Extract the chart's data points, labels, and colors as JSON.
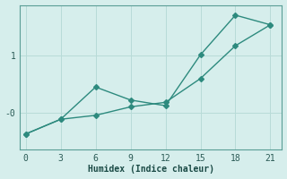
{
  "xlabel": "Humidex (Indice chaleur)",
  "background_color": "#d6eeec",
  "line_color": "#2d8a7e",
  "grid_color": "#b8dbd8",
  "x_ticks": [
    0,
    3,
    6,
    9,
    12,
    15,
    18,
    21
  ],
  "xlim": [
    -0.5,
    22
  ],
  "ylim": [
    -0.65,
    1.9
  ],
  "y_ticks": [
    0,
    1
  ],
  "y_tick_labels": [
    "-0",
    "1"
  ],
  "line1_x": [
    0,
    3,
    6,
    9,
    12,
    15,
    18,
    21
  ],
  "line1_y": [
    -0.38,
    -0.12,
    0.45,
    0.22,
    0.12,
    1.02,
    1.72,
    1.55
  ],
  "line2_x": [
    0,
    3,
    6,
    9,
    12,
    15,
    18,
    21
  ],
  "line2_y": [
    -0.38,
    -0.12,
    -0.05,
    0.1,
    0.18,
    0.6,
    1.18,
    1.55
  ],
  "marker": "D",
  "marker_size": 3,
  "linewidth": 1.0
}
